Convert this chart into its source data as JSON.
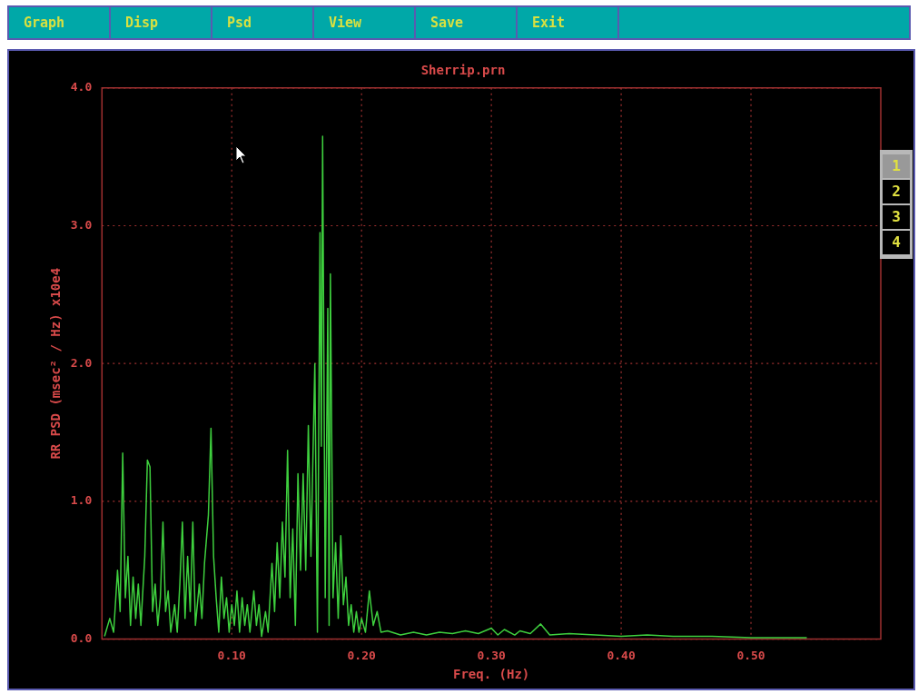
{
  "chart_data": {
    "type": "line",
    "title": "Sherrip.prn",
    "xlabel": "Freq. (Hz)",
    "ylabel": "RR PSD (msec² / Hz) x10e4",
    "annotations": [
      "Graph",
      "Disp",
      "Psd",
      "View",
      "Save",
      "Exit",
      "1",
      "2",
      "3",
      "4"
    ],
    "series": [
      {
        "color": "#3ecf3e",
        "x": [
          0.002,
          0.006,
          0.009,
          0.012,
          0.014,
          0.016,
          0.018,
          0.02,
          0.022,
          0.024,
          0.026,
          0.028,
          0.03,
          0.033,
          0.035,
          0.037,
          0.039,
          0.041,
          0.043,
          0.045,
          0.047,
          0.049,
          0.051,
          0.053,
          0.056,
          0.058,
          0.06,
          0.062,
          0.064,
          0.066,
          0.068,
          0.07,
          0.072,
          0.075,
          0.077,
          0.079,
          0.082,
          0.084,
          0.086,
          0.088,
          0.09,
          0.092,
          0.094,
          0.096,
          0.098,
          0.1,
          0.102,
          0.104,
          0.106,
          0.108,
          0.11,
          0.112,
          0.114,
          0.117,
          0.119,
          0.121,
          0.123,
          0.126,
          0.128,
          0.131,
          0.133,
          0.135,
          0.137,
          0.139,
          0.141,
          0.143,
          0.145,
          0.147,
          0.149,
          0.151,
          0.153,
          0.155,
          0.157,
          0.159,
          0.161,
          0.164,
          0.166,
          0.168,
          0.169,
          0.17,
          0.172,
          0.174,
          0.175,
          0.176,
          0.178,
          0.18,
          0.182,
          0.184,
          0.186,
          0.188,
          0.19,
          0.192,
          0.194,
          0.196,
          0.198,
          0.2,
          0.203,
          0.206,
          0.209,
          0.212,
          0.215,
          0.22,
          0.23,
          0.24,
          0.25,
          0.26,
          0.27,
          0.28,
          0.29,
          0.3,
          0.305,
          0.31,
          0.318,
          0.322,
          0.33,
          0.338,
          0.345,
          0.36,
          0.38,
          0.4,
          0.42,
          0.44,
          0.47,
          0.5,
          0.543
        ],
        "values": [
          0.02,
          0.15,
          0.05,
          0.5,
          0.2,
          1.35,
          0.3,
          0.6,
          0.1,
          0.45,
          0.15,
          0.4,
          0.1,
          0.6,
          1.3,
          1.25,
          0.2,
          0.4,
          0.1,
          0.3,
          0.85,
          0.2,
          0.35,
          0.05,
          0.25,
          0.05,
          0.4,
          0.85,
          0.15,
          0.6,
          0.2,
          0.85,
          0.1,
          0.4,
          0.15,
          0.55,
          0.9,
          1.53,
          0.6,
          0.3,
          0.05,
          0.45,
          0.15,
          0.3,
          0.05,
          0.25,
          0.1,
          0.35,
          0.05,
          0.3,
          0.1,
          0.25,
          0.05,
          0.35,
          0.1,
          0.25,
          0.02,
          0.2,
          0.05,
          0.55,
          0.2,
          0.7,
          0.3,
          0.85,
          0.45,
          1.37,
          0.3,
          0.8,
          0.1,
          1.2,
          0.5,
          1.2,
          0.5,
          1.55,
          0.6,
          2.0,
          0.05,
          2.95,
          1.4,
          3.65,
          0.3,
          2.4,
          0.1,
          2.65,
          0.3,
          0.7,
          0.15,
          0.75,
          0.25,
          0.45,
          0.1,
          0.25,
          0.05,
          0.2,
          0.05,
          0.15,
          0.05,
          0.35,
          0.1,
          0.2,
          0.05,
          0.06,
          0.03,
          0.05,
          0.03,
          0.05,
          0.04,
          0.06,
          0.04,
          0.08,
          0.03,
          0.07,
          0.03,
          0.06,
          0.04,
          0.11,
          0.03,
          0.04,
          0.03,
          0.02,
          0.03,
          0.02,
          0.02,
          0.01,
          0.01
        ]
      }
    ],
    "xlim": [
      0,
      0.6
    ],
    "ylim": [
      0,
      4
    ],
    "xticks": [
      {
        "value": 0.1,
        "label": "0.10"
      },
      {
        "value": 0.2,
        "label": "0.20"
      },
      {
        "value": 0.3,
        "label": "0.30"
      },
      {
        "value": 0.4,
        "label": "0.40"
      },
      {
        "value": 0.5,
        "label": "0.50"
      }
    ],
    "yticks": [
      {
        "value": 0,
        "label": "0.0"
      },
      {
        "value": 1,
        "label": "1.0"
      },
      {
        "value": 2,
        "label": "2.0"
      },
      {
        "value": 3,
        "label": "3.0"
      },
      {
        "value": 4,
        "label": "4.0"
      }
    ],
    "grid": true,
    "legend": false,
    "marker": "none",
    "line_style": "solid"
  }
}
